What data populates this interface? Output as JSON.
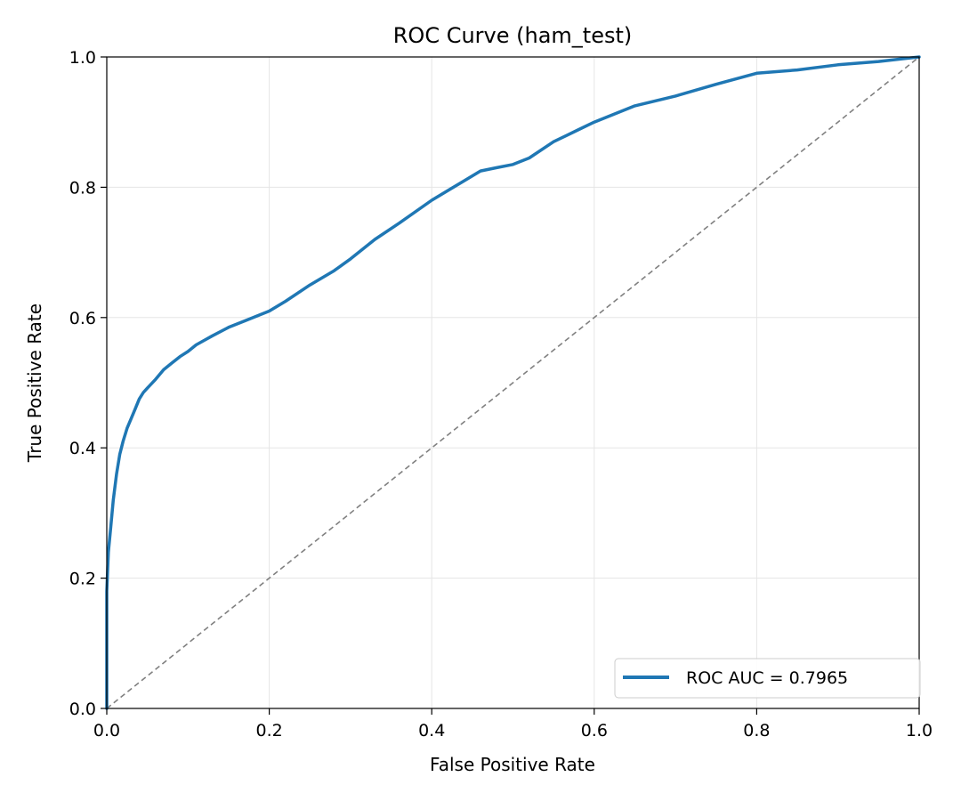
{
  "chart_data": {
    "type": "line",
    "title": "ROC Curve (ham_test)",
    "xlabel": "False Positive Rate",
    "ylabel": "True Positive Rate",
    "xlim": [
      0,
      1
    ],
    "ylim": [
      0,
      1
    ],
    "x_ticks": [
      "0.0",
      "0.2",
      "0.4",
      "0.6",
      "0.8",
      "1.0"
    ],
    "y_ticks": [
      "0.0",
      "0.2",
      "0.4",
      "0.6",
      "0.8",
      "1.0"
    ],
    "grid": true,
    "legend_position": "bottom-right",
    "series": [
      {
        "name": "ROC AUC = 0.7965",
        "color": "#1f77b4",
        "x": [
          0.0,
          0.0,
          0.002,
          0.005,
          0.008,
          0.012,
          0.016,
          0.02,
          0.025,
          0.03,
          0.035,
          0.04,
          0.045,
          0.05,
          0.06,
          0.07,
          0.08,
          0.09,
          0.1,
          0.11,
          0.12,
          0.13,
          0.15,
          0.17,
          0.2,
          0.22,
          0.25,
          0.28,
          0.3,
          0.33,
          0.36,
          0.4,
          0.44,
          0.46,
          0.48,
          0.5,
          0.52,
          0.55,
          0.58,
          0.6,
          0.65,
          0.7,
          0.75,
          0.8,
          0.85,
          0.9,
          0.95,
          1.0
        ],
        "y": [
          0.0,
          0.18,
          0.24,
          0.28,
          0.32,
          0.36,
          0.39,
          0.41,
          0.43,
          0.445,
          0.46,
          0.475,
          0.485,
          0.492,
          0.505,
          0.52,
          0.53,
          0.54,
          0.548,
          0.558,
          0.565,
          0.572,
          0.585,
          0.595,
          0.61,
          0.625,
          0.65,
          0.672,
          0.69,
          0.72,
          0.745,
          0.78,
          0.81,
          0.825,
          0.83,
          0.835,
          0.845,
          0.87,
          0.888,
          0.9,
          0.925,
          0.94,
          0.958,
          0.975,
          0.98,
          0.988,
          0.993,
          1.0
        ]
      },
      {
        "name": "",
        "color": "#808080",
        "style": "dashed",
        "x": [
          0,
          1
        ],
        "y": [
          0,
          1
        ]
      }
    ]
  }
}
